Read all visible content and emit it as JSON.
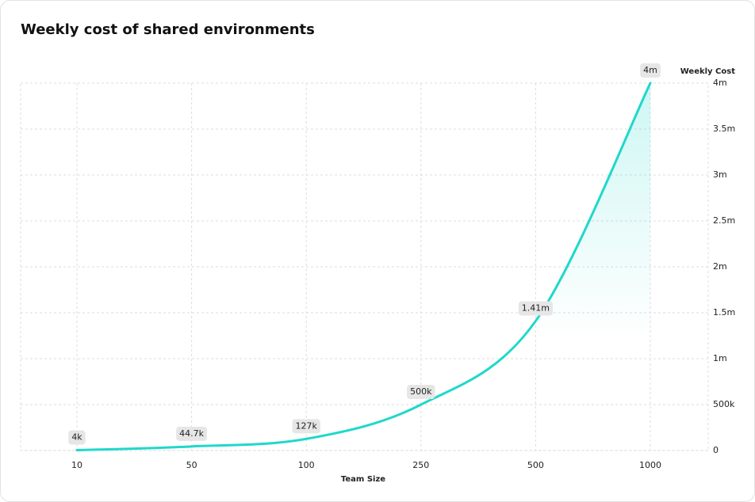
{
  "chart_data": {
    "type": "line",
    "title": "Weekly cost of shared environments",
    "x_label": "Team Size",
    "y_label": "Weekly Cost",
    "categories": [
      "10",
      "50",
      "100",
      "250",
      "500",
      "1000"
    ],
    "values": [
      4000,
      44700,
      127000,
      500000,
      1410000,
      4000000
    ],
    "value_labels": [
      "4k",
      "44.7k",
      "127k",
      "500k",
      "1.41m",
      "4m"
    ],
    "color": "#1fd8cb",
    "ylim": [
      0,
      4000000
    ],
    "yticks": [
      0,
      {
        "value": 500000,
        "label": "500k"
      },
      {
        "value": 1000000,
        "label": "1m"
      },
      {
        "value": 1500000,
        "label": "1.5m"
      },
      {
        "value": 2000000,
        "label": "2m"
      },
      {
        "value": 2500000,
        "label": "2.5m"
      },
      {
        "value": 3000000,
        "label": "3m"
      },
      {
        "value": 3500000,
        "label": "3.5m"
      },
      {
        "value": 4000000,
        "label": "4m"
      }
    ],
    "grid": true
  }
}
